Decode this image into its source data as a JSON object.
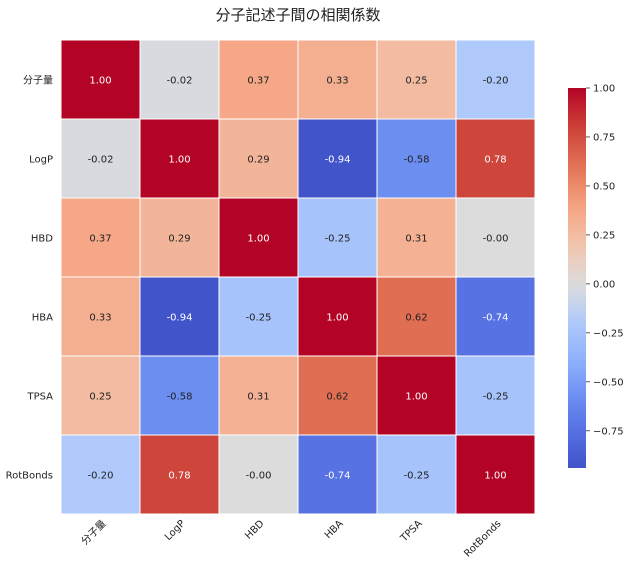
{
  "chart_data": {
    "type": "heatmap",
    "title": "分子記述子間の相関係数",
    "row_labels": [
      "分子量",
      "LogP",
      "HBD",
      "HBA",
      "TPSA",
      "RotBonds"
    ],
    "col_labels": [
      "分子量",
      "LogP",
      "HBD",
      "HBA",
      "TPSA",
      "RotBonds"
    ],
    "values": [
      [
        1.0,
        -0.02,
        0.37,
        0.33,
        0.25,
        -0.2
      ],
      [
        -0.02,
        1.0,
        0.29,
        -0.94,
        -0.58,
        0.78
      ],
      [
        0.37,
        0.29,
        1.0,
        -0.25,
        0.31,
        -0.0
      ],
      [
        0.33,
        -0.94,
        -0.25,
        1.0,
        0.62,
        -0.74
      ],
      [
        0.25,
        -0.58,
        0.31,
        0.62,
        1.0,
        -0.25
      ],
      [
        -0.2,
        0.78,
        -0.0,
        -0.74,
        -0.25,
        1.0
      ]
    ],
    "annotations": [
      [
        "1.00",
        "-0.02",
        "0.37",
        "0.33",
        "0.25",
        "-0.20"
      ],
      [
        "-0.02",
        "1.00",
        "0.29",
        "-0.94",
        "-0.58",
        "0.78"
      ],
      [
        "0.37",
        "0.29",
        "1.00",
        "-0.25",
        "0.31",
        "-0.00"
      ],
      [
        "0.33",
        "-0.94",
        "-0.25",
        "1.00",
        "0.62",
        "-0.74"
      ],
      [
        "0.25",
        "-0.58",
        "0.31",
        "0.62",
        "1.00",
        "-0.25"
      ],
      [
        "-0.20",
        "0.78",
        "-0.00",
        "-0.74",
        "-0.25",
        "1.00"
      ]
    ],
    "colormap": "coolwarm",
    "vmin": -0.94,
    "vmax": 1.0,
    "colorbar_ticks": [
      1.0,
      0.75,
      0.5,
      0.25,
      0.0,
      -0.25,
      -0.5,
      -0.75
    ],
    "colorbar_tick_labels": [
      "1.00",
      "0.75",
      "0.50",
      "0.25",
      "0.00",
      "−0.25",
      "−0.50",
      "−0.75"
    ],
    "cell_border_color": "#ffffff",
    "colors": {
      "low": "#3b4cc0",
      "mid": "#dddcdc",
      "high": "#b40426"
    }
  }
}
